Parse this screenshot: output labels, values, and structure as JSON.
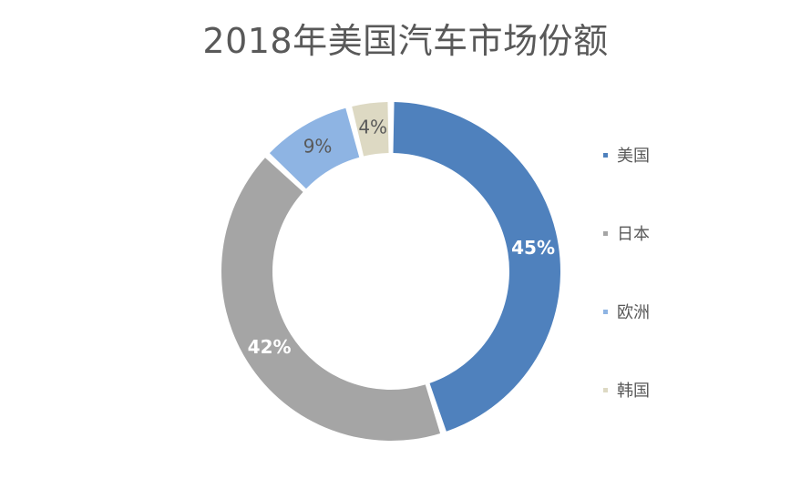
{
  "chart_data": {
    "type": "pie",
    "variant": "donut",
    "title": "2018年美国汽车市场份额",
    "categories": [
      "美国",
      "日本",
      "欧洲",
      "韩国"
    ],
    "values": [
      45,
      42,
      9,
      4
    ],
    "value_labels": [
      "45%",
      "42%",
      "9%",
      "4%"
    ],
    "colors": [
      "#4f81bd",
      "#a5a5a5",
      "#8eb4e3",
      "#ddd9c3"
    ],
    "label_colors": [
      "#ffffff",
      "#ffffff",
      "#595959",
      "#595959"
    ],
    "legend_position": "right",
    "start_angle_deg": 0,
    "direction": "clockwise"
  }
}
